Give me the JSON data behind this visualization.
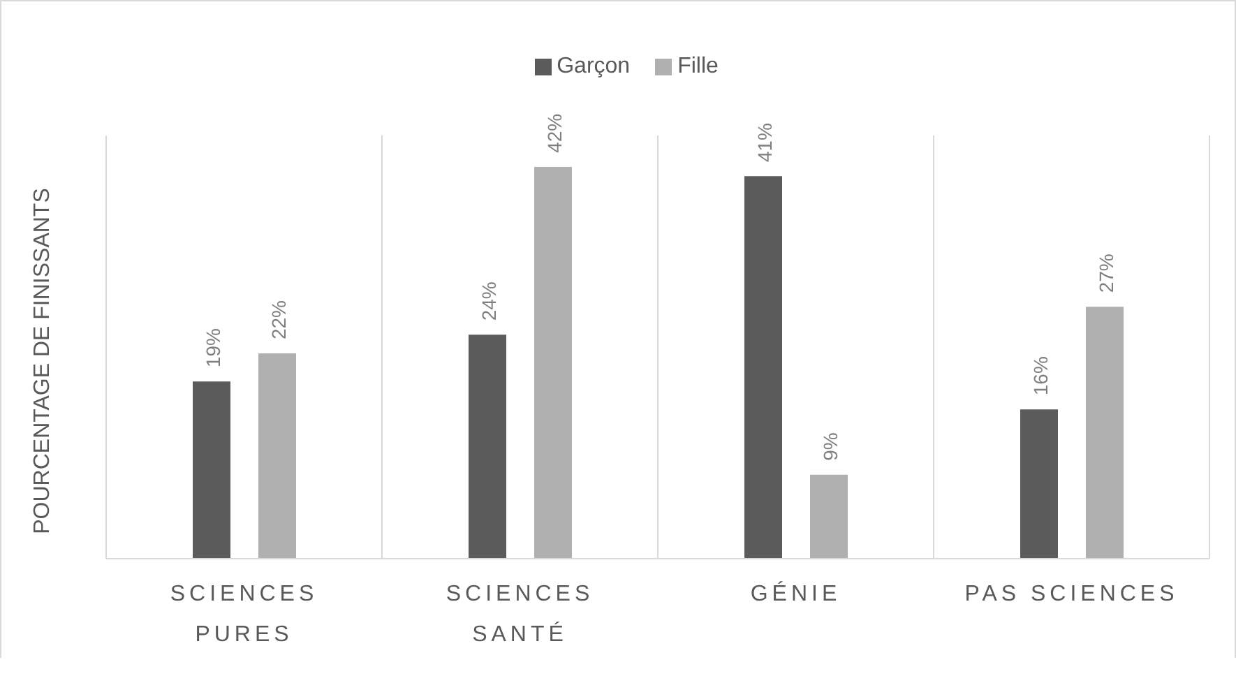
{
  "chart_data": {
    "type": "bar",
    "ylabel": "POURCENTAGE DE FINISSANTS",
    "categories": [
      "SCIENCES PURES",
      "SCIENCES SANTÉ",
      "GÉNIE",
      "PAS SCIENCES"
    ],
    "series": [
      {
        "name": "Garçon",
        "color": "#5b5b5b",
        "values": [
          19,
          24,
          41,
          16
        ],
        "value_labels": [
          "19%",
          "24%",
          "41%",
          "16%"
        ]
      },
      {
        "name": "Fille",
        "color": "#b0b0b0",
        "values": [
          22,
          42,
          9,
          27
        ],
        "value_labels": [
          "22%",
          "42%",
          "9%",
          "27%"
        ]
      }
    ],
    "grid": "x",
    "legend": "top"
  }
}
